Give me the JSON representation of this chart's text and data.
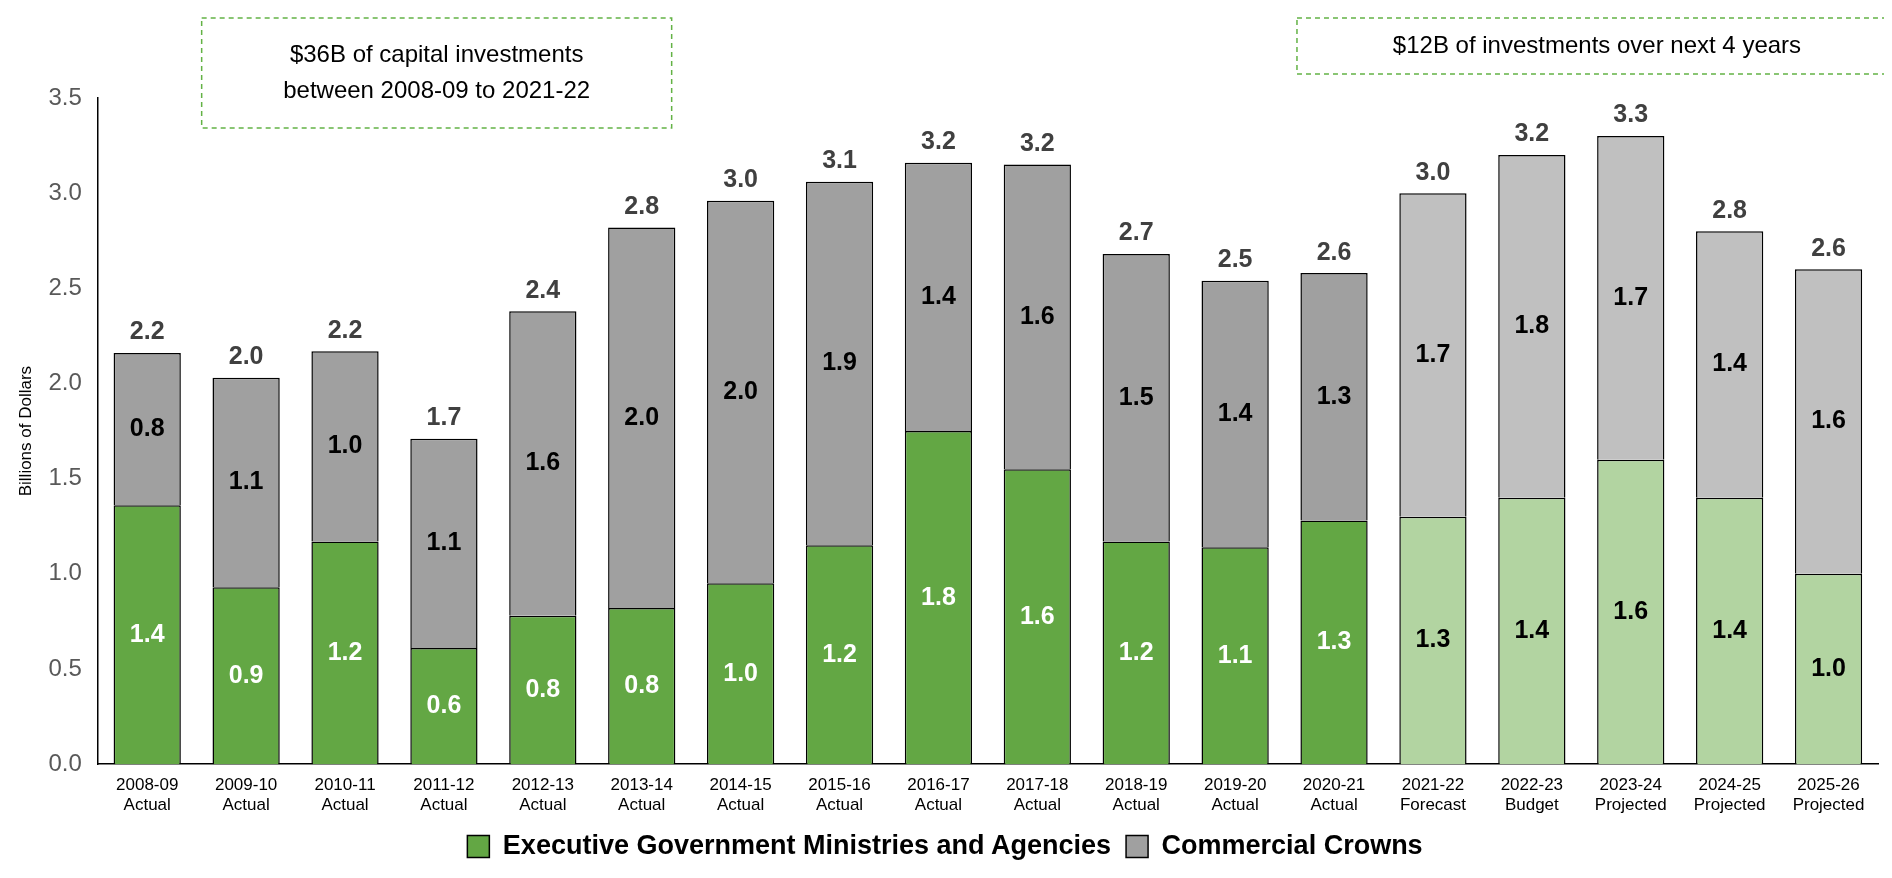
{
  "chart_data": {
    "type": "bar",
    "stacked": true,
    "ylabel": "Billions of Dollars",
    "categories": [
      "2008-09\nActual",
      "2009-10\nActual",
      "2010-11\nActual",
      "2011-12\nActual",
      "2012-13\nActual",
      "2013-14\nActual",
      "2014-15\nActual",
      "2015-16\nActual",
      "2016-17\nActual",
      "2017-18\nActual",
      "2018-19\nActual",
      "2019-20\nActual",
      "2020-21\nActual",
      "2021-22\nForecast",
      "2022-23\nBudget",
      "2023-24\nProjected",
      "2024-25\nProjected",
      "2025-26\nProjected"
    ],
    "series": [
      {
        "name": "Executive Government Ministries and Agencies",
        "color": "#63a744",
        "colors": [
          "#63a744",
          "#63a744",
          "#63a744",
          "#63a744",
          "#63a744",
          "#63a744",
          "#63a744",
          "#63a744",
          "#63a744",
          "#63a744",
          "#63a744",
          "#63a744",
          "#63a744",
          "#b2d4a1",
          "#b2d4a1",
          "#b2d4a1",
          "#b2d4a1",
          "#b2d4a1"
        ],
        "values": [
          1.36,
          0.93,
          1.17,
          0.61,
          0.78,
          0.82,
          0.95,
          1.15,
          1.75,
          1.55,
          1.17,
          1.14,
          1.28,
          1.3,
          1.4,
          1.6,
          1.4,
          1.0
        ],
        "value_labels": [
          "1.4",
          "0.9",
          "1.2",
          "0.6",
          "0.8",
          "0.8",
          "1.0",
          "1.2",
          "1.8",
          "1.6",
          "1.2",
          "1.1",
          "1.3",
          "1.3",
          "1.4",
          "1.6",
          "1.4",
          "1.0"
        ]
      },
      {
        "name": "Commercial Crowns",
        "color": "#a0a0a0",
        "colors": [
          "#a0a0a0",
          "#a0a0a0",
          "#a0a0a0",
          "#a0a0a0",
          "#a0a0a0",
          "#a0a0a0",
          "#a0a0a0",
          "#a0a0a0",
          "#a0a0a0",
          "#a0a0a0",
          "#a0a0a0",
          "#a0a0a0",
          "#a0a0a0",
          "#c0c0c0",
          "#c0c0c0",
          "#c0c0c0",
          "#c0c0c0",
          "#c0c0c0"
        ],
        "values": [
          0.8,
          1.1,
          1.0,
          1.1,
          1.6,
          2.0,
          2.01,
          1.91,
          1.41,
          1.6,
          1.51,
          1.4,
          1.3,
          1.7,
          1.8,
          1.7,
          1.4,
          1.6
        ],
        "value_labels": [
          "0.8",
          "1.1",
          "1.0",
          "1.1",
          "1.6",
          "2.0",
          "2.0",
          "1.9",
          "1.4",
          "1.6",
          "1.5",
          "1.4",
          "1.3",
          "1.7",
          "1.8",
          "1.7",
          "1.4",
          "1.6"
        ]
      }
    ],
    "totals": [
      "2.2",
      "2.0",
      "2.2",
      "1.7",
      "2.4",
      "2.8",
      "3.0",
      "3.1",
      "3.2",
      "3.2",
      "2.7",
      "2.5",
      "2.6",
      "3.0",
      "3.2",
      "3.3",
      "2.8",
      "2.6"
    ],
    "ylim": [
      0,
      3.5
    ],
    "yticks": [
      {
        "value": 0,
        "label": "0.0"
      },
      {
        "value": 0.5,
        "label": "0.5"
      },
      {
        "value": 1,
        "label": "1.0"
      },
      {
        "value": 1.5,
        "label": "1.5"
      },
      {
        "value": 2,
        "label": "2.0"
      },
      {
        "value": 2.5,
        "label": "2.5"
      },
      {
        "value": 3,
        "label": "3.0"
      },
      {
        "value": 3.5,
        "label": "3.5"
      }
    ],
    "grid": false,
    "legend": "bottom",
    "annotations": [
      "$36B of capital investments\nbetween 2008-09 to 2021-22",
      "$12B of investments over next 4 years"
    ]
  }
}
